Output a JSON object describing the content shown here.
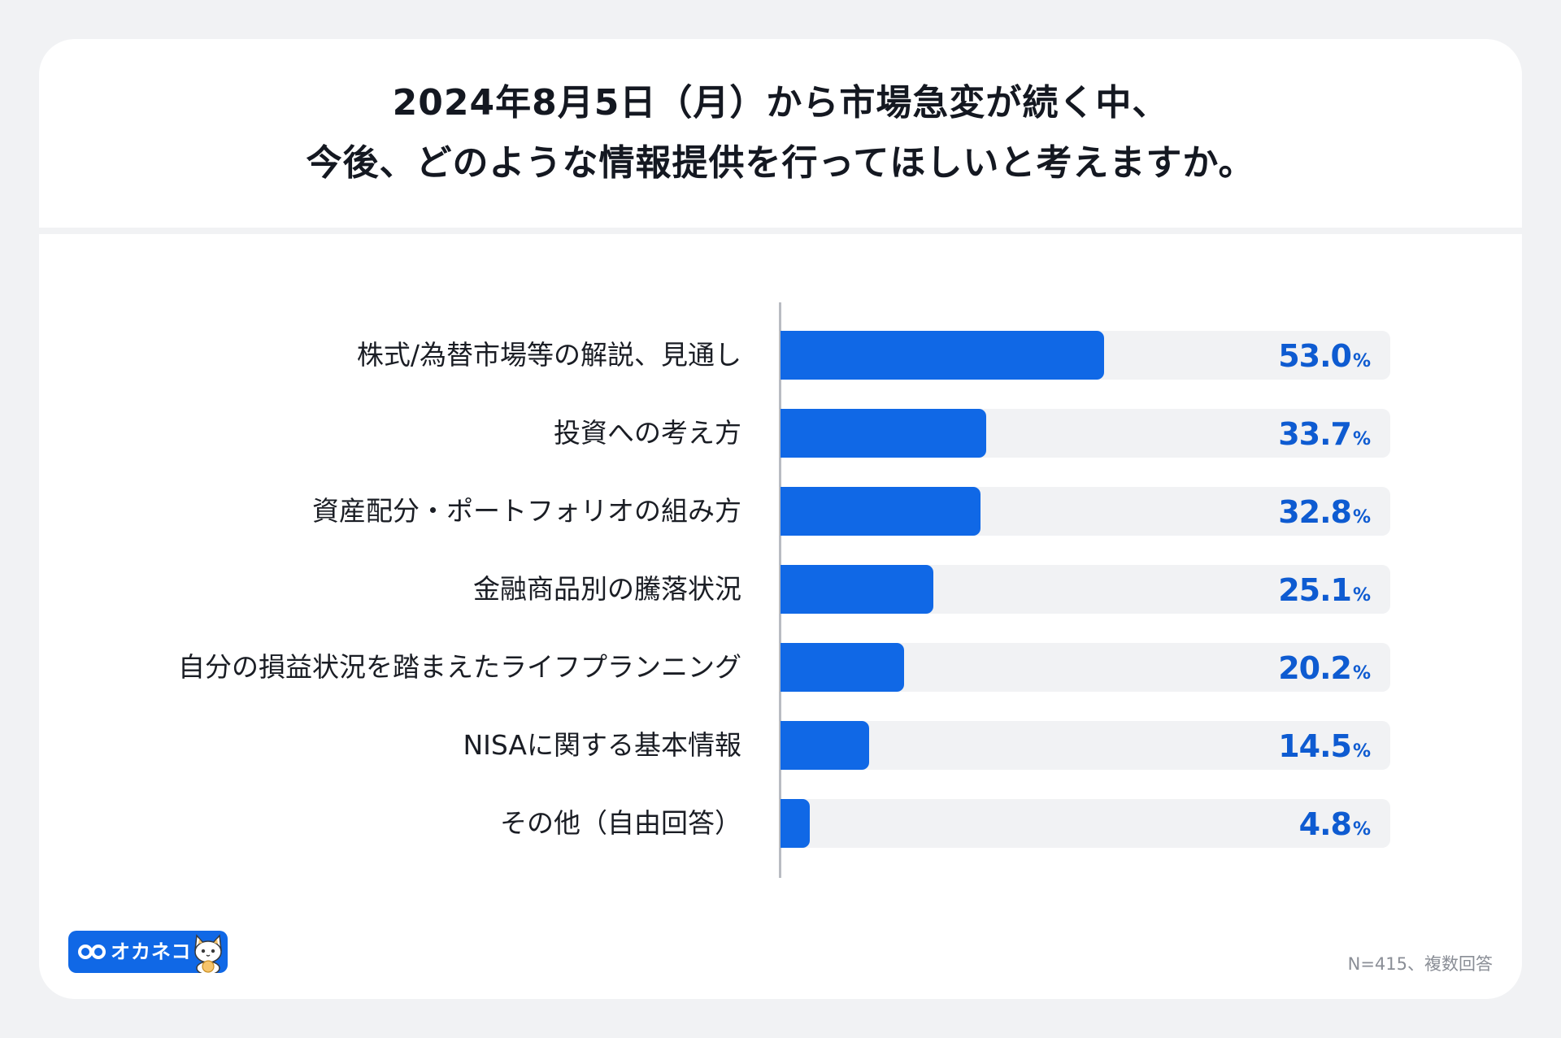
{
  "title": {
    "line1": "2024年8月5日（月）から市場急変が続く中、",
    "line2": "今後、どのような情報提供を行ってほしいと考えますか。"
  },
  "chart_data": {
    "type": "bar",
    "orientation": "horizontal",
    "title": "2024年8月5日（月）から市場急変が続く中、今後、どのような情報提供を行ってほしいと考えますか。",
    "categories": [
      "株式/為替市場等の解説、見通し",
      "投資への考え方",
      "資産配分・ポートフォリオの組み方",
      "金融商品別の騰落状況",
      "自分の損益状況を踏まえたライフプランニング",
      "NISAに関する基本情報",
      "その他（自由回答）"
    ],
    "values": [
      53.0,
      33.7,
      32.8,
      25.1,
      20.2,
      14.5,
      4.8
    ],
    "value_labels": [
      "53.0",
      "33.7",
      "32.8",
      "25.1",
      "20.2",
      "14.5",
      "4.8"
    ],
    "unit": "%",
    "xlim": [
      0,
      100
    ],
    "grid": false,
    "legend": "none",
    "bar_color": "#1068e6",
    "track_color": "#f1f2f4",
    "value_color": "#0e5bd1"
  },
  "footer": {
    "logo_text": "オカネコ",
    "note": "N=415、複数回答"
  },
  "colors": {
    "background": "#f1f2f4",
    "card": "#ffffff",
    "brand": "#1068e6"
  },
  "icons": {
    "logo_mark": "infinity-logo-icon",
    "mascot": "cat-mascot-icon"
  }
}
